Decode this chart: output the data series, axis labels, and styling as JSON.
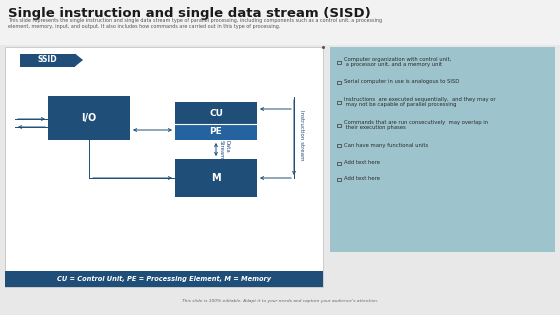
{
  "title": "Single instruction and single data stream (SISD)",
  "subtitle": "This slide represents the single instruction and single data stream type of parallel processing, including components such as a control unit, a processing element, memory, input, and output. It also includes how commands are carried out in this type of processing.",
  "bg_color": "#e8e8e8",
  "left_panel_bg": "#ffffff",
  "right_panel_bg": "#9dc4cc",
  "box_color": "#1f4e79",
  "pe_box_color": "#2563a0",
  "box_text_color": "#ffffff",
  "arrow_color": "#1f4e79",
  "line_color": "#1f4e79",
  "ssid_bg": "#1f4e79",
  "ssid_text": "SSID",
  "ssid_text_color": "#ffffff",
  "io_label": "I/O",
  "cu_label": "CU",
  "pe_label": "PE",
  "m_label": "M",
  "data_stream_label": "Data\nStream",
  "instruction_stream_label": "Instruction stream",
  "footer_bg": "#1f4e79",
  "footer_text": "CU = Control Unit, PE = Processing Element, M = Memory",
  "footer_text_color": "#ffffff",
  "bullet_points": [
    "Computer organization with control unit,\n a processor unit, and a memory unit",
    "Serial computer in use is analogous to SISD",
    "Instructions  are executed sequentially,  and they may or\n may not be capable of parallel processing",
    "Commands that are run consecutively  may overlap in\n their execution phases",
    "Can have many functional units",
    "Add text here",
    "Add text here"
  ],
  "bullet_text_color": "#2a2a2a",
  "bottom_note": "This slide is 100% editable. Adapt it to your needs and capture your audience's attention."
}
